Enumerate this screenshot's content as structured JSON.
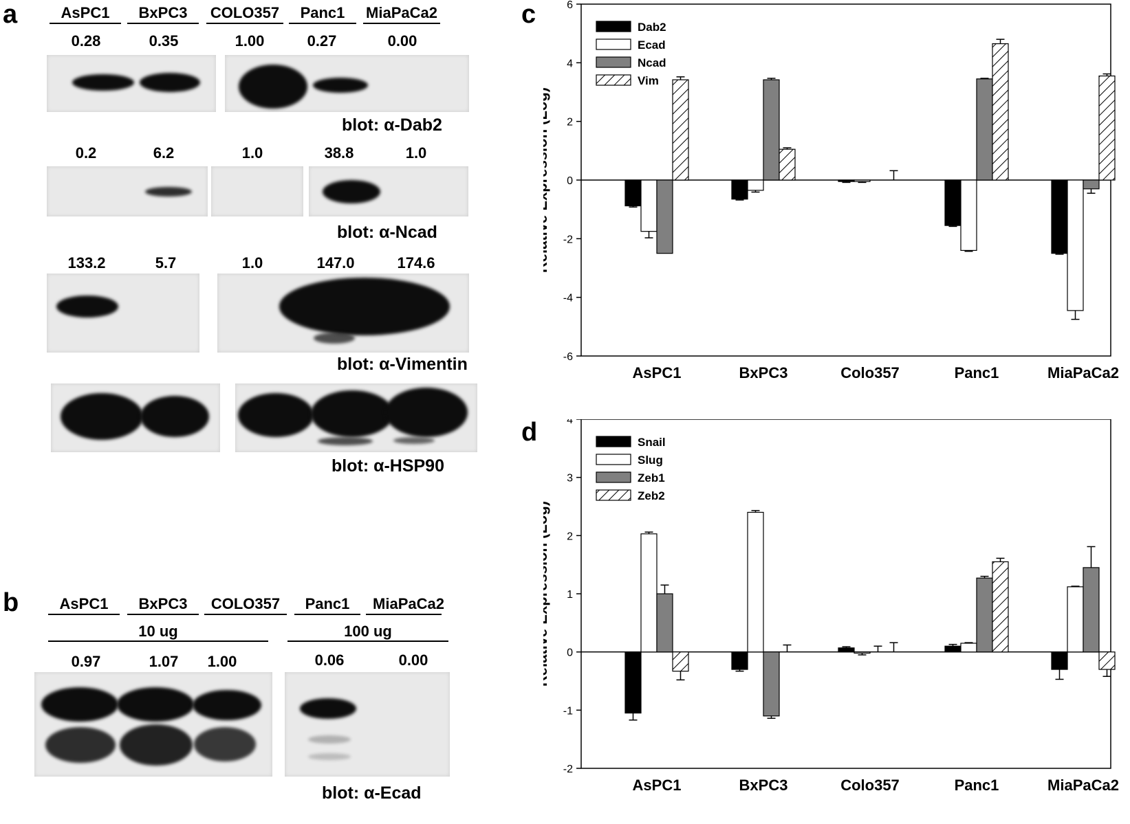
{
  "panels": {
    "a": {
      "letter": "a",
      "lanes": [
        "AsPC1",
        "BxPC3",
        "COLO357",
        "Panc1",
        "MiaPaCa2"
      ],
      "blots": [
        {
          "label": "blot:  α-Dab2",
          "values": [
            "0.28",
            "0.35",
            "1.00",
            "0.27",
            "0.00"
          ]
        },
        {
          "label": "blot:  α-Ncad",
          "values": [
            "0.2",
            "6.2",
            "1.0",
            "38.8",
            "1.0"
          ]
        },
        {
          "label": "blot:  α-Vimentin",
          "values": [
            "133.2",
            "5.7",
            "1.0",
            "147.0",
            "174.6"
          ]
        },
        {
          "label": "blot:  α-HSP90",
          "values": []
        }
      ]
    },
    "b": {
      "letter": "b",
      "lanes": [
        "AsPC1",
        "BxPC3",
        "COLO357",
        "Panc1",
        "MiaPaCa2"
      ],
      "groups": [
        "10 ug",
        "100 ug"
      ],
      "values": [
        "0.97",
        "1.07",
        "1.00",
        "0.06",
        "0.00"
      ],
      "label": "blot:  α-Ecad"
    },
    "c": {
      "letter": "c"
    },
    "d": {
      "letter": "d"
    }
  },
  "chart_data": [
    {
      "panel": "c",
      "type": "bar",
      "categories": [
        "AsPC1",
        "BxPC3",
        "Colo357",
        "Panc1",
        "MiaPaCa2"
      ],
      "ylabel": "Relative Expression (Log)",
      "ylim": [
        -6,
        6
      ],
      "yticks": [
        -6,
        -4,
        -2,
        0,
        2,
        4,
        6
      ],
      "legend_position": "top-left",
      "series": [
        {
          "name": "Dab2",
          "fill": "#000000",
          "values": [
            -0.88,
            -0.65,
            -0.05,
            -1.55,
            -2.5
          ],
          "errors": [
            0.04,
            0.03,
            0.03,
            0.03,
            0.03
          ]
        },
        {
          "name": "Ecad",
          "fill": "#ffffff",
          "values": [
            -1.75,
            -0.35,
            -0.05,
            -2.4,
            -4.45
          ],
          "errors": [
            0.22,
            0.06,
            0.03,
            0.03,
            0.3
          ]
        },
        {
          "name": "Ncad",
          "fill": "#808080",
          "values": [
            -2.5,
            3.42,
            0,
            3.45,
            -0.3
          ],
          "errors": [
            0,
            0.05,
            0,
            0.02,
            0.15
          ]
        },
        {
          "name": "Vim",
          "fill": "hatch",
          "values": [
            3.42,
            1.05,
            0,
            4.65,
            3.55
          ],
          "errors": [
            0.1,
            0.05,
            0.32,
            0.15,
            0.07
          ]
        }
      ]
    },
    {
      "panel": "d",
      "type": "bar",
      "categories": [
        "AsPC1",
        "BxPC3",
        "Colo357",
        "Panc1",
        "MiaPaCa2"
      ],
      "ylabel": "Relative Expression (Log)",
      "ylim": [
        -2,
        4
      ],
      "yticks": [
        -2,
        -1,
        0,
        1,
        2,
        3,
        4
      ],
      "legend_position": "top-left",
      "series": [
        {
          "name": "Snail",
          "fill": "#000000",
          "values": [
            -1.05,
            -0.3,
            0.07,
            0.1,
            -0.3
          ],
          "errors": [
            0.12,
            0.03,
            0.02,
            0.03,
            0.17
          ]
        },
        {
          "name": "Slug",
          "fill": "#ffffff",
          "values": [
            2.03,
            2.4,
            -0.02,
            0.15,
            1.12
          ],
          "errors": [
            0.03,
            0.03,
            0.03,
            0.01,
            0.01
          ]
        },
        {
          "name": "Zeb1",
          "fill": "#808080",
          "values": [
            1.0,
            -1.1,
            0,
            1.27,
            1.45
          ],
          "errors": [
            0.15,
            0.04,
            0.1,
            0.03,
            0.36
          ]
        },
        {
          "name": "Zeb2",
          "fill": "hatch",
          "values": [
            -0.33,
            0,
            0,
            1.55,
            -0.3
          ],
          "errors": [
            0.15,
            0.12,
            0.16,
            0.06,
            0.12
          ]
        }
      ]
    }
  ]
}
